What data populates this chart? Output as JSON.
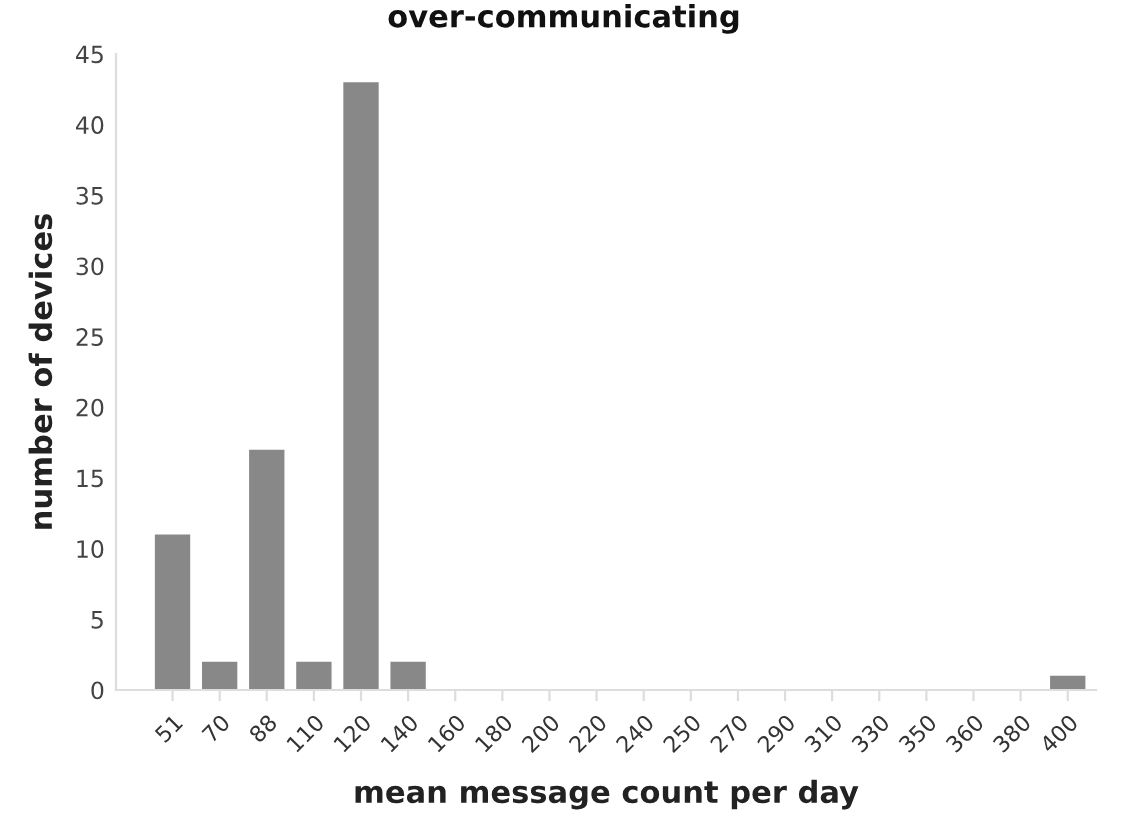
{
  "chart_data": {
    "type": "bar",
    "title": "over-communicating",
    "xlabel": "mean message count per day",
    "ylabel": "number of devices",
    "categories": [
      "51",
      "70",
      "88",
      "110",
      "120",
      "140",
      "160",
      "180",
      "200",
      "220",
      "240",
      "250",
      "270",
      "290",
      "310",
      "330",
      "350",
      "360",
      "380",
      "400"
    ],
    "values": [
      11,
      2,
      17,
      2,
      43,
      2,
      0,
      0,
      0,
      0,
      0,
      0,
      0,
      0,
      0,
      0,
      0,
      0,
      0,
      1
    ],
    "color": "#888888",
    "ylim": [
      0,
      45
    ],
    "yticks": [
      0,
      5,
      10,
      15,
      20,
      25,
      30,
      35,
      40,
      45
    ],
    "grid": false,
    "legend": false
  }
}
